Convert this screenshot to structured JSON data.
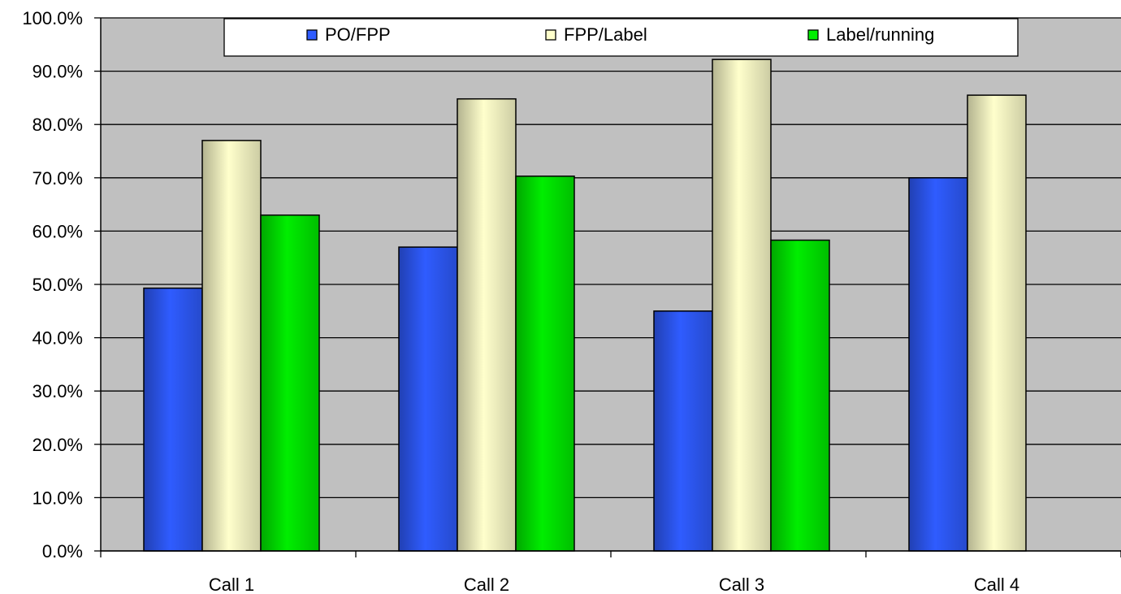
{
  "chart_data": {
    "type": "bar",
    "categories": [
      "Call 1",
      "Call 2",
      "Call 3",
      "Call 4"
    ],
    "series": [
      {
        "name": "PO/FPP",
        "color": "#2f5cff",
        "values": [
          49.3,
          57.0,
          45.0,
          70.0
        ]
      },
      {
        "name": "FPP/Label",
        "color": "#ffffcc",
        "values": [
          77.0,
          84.8,
          92.2,
          85.5
        ]
      },
      {
        "name": "Label/running",
        "color": "#00ee00",
        "values": [
          63.0,
          70.3,
          58.3,
          null
        ]
      }
    ],
    "ylim": [
      0,
      100
    ],
    "yticks": [
      "0.0%",
      "10.0%",
      "20.0%",
      "30.0%",
      "40.0%",
      "50.0%",
      "60.0%",
      "70.0%",
      "80.0%",
      "90.0%",
      "100.0%"
    ],
    "title": "",
    "xlabel": "",
    "ylabel": "",
    "grid": true,
    "legend_position": "top",
    "plot_background": "#c0c0c0"
  }
}
